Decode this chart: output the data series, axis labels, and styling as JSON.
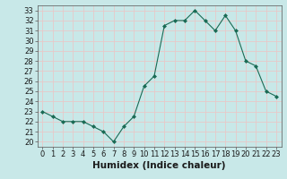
{
  "x": [
    0,
    1,
    2,
    3,
    4,
    5,
    6,
    7,
    8,
    9,
    10,
    11,
    12,
    13,
    14,
    15,
    16,
    17,
    18,
    19,
    20,
    21,
    22,
    23
  ],
  "y": [
    23,
    22.5,
    22,
    22,
    22,
    21.5,
    21,
    20,
    21.5,
    22.5,
    25.5,
    26.5,
    31.5,
    32,
    32,
    33,
    32,
    31,
    32.5,
    31,
    28,
    27.5,
    25,
    24.5
  ],
  "line_color": "#1a6b55",
  "marker": "D",
  "marker_size": 2,
  "bg_color": "#c8e8e8",
  "grid_color": "#e8c8c8",
  "xlabel": "Humidex (Indice chaleur)",
  "xlim": [
    -0.5,
    23.5
  ],
  "ylim": [
    19.5,
    33.5
  ],
  "yticks": [
    20,
    21,
    22,
    23,
    24,
    25,
    26,
    27,
    28,
    29,
    30,
    31,
    32,
    33
  ],
  "xticks": [
    0,
    1,
    2,
    3,
    4,
    5,
    6,
    7,
    8,
    9,
    10,
    11,
    12,
    13,
    14,
    15,
    16,
    17,
    18,
    19,
    20,
    21,
    22,
    23
  ],
  "tick_label_fontsize": 6,
  "xlabel_fontsize": 7.5,
  "spine_color": "#555555"
}
